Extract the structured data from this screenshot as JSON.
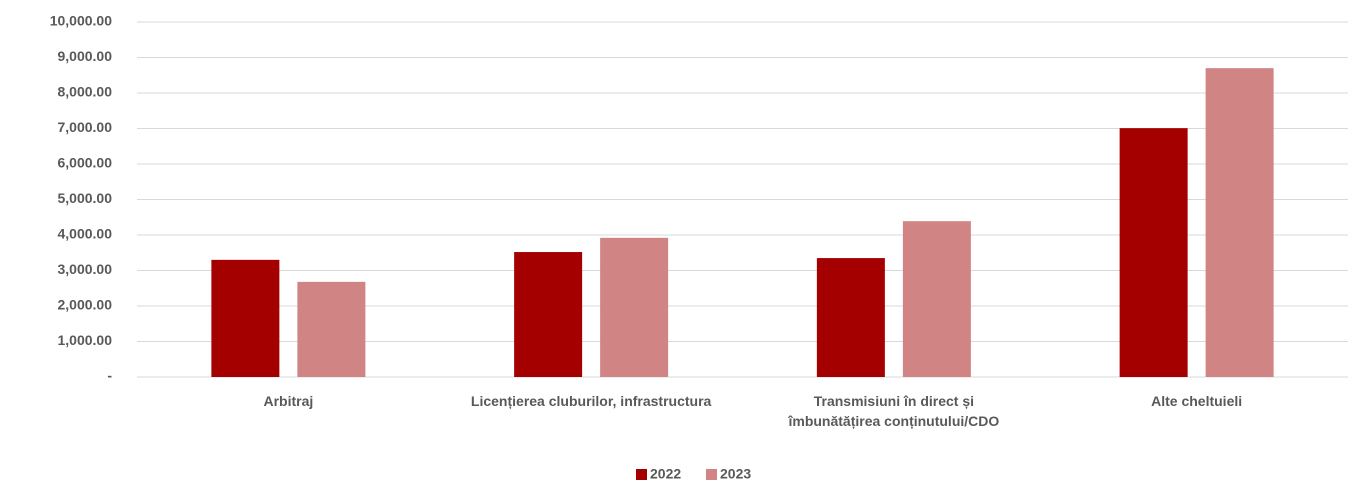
{
  "chart_data": {
    "type": "bar",
    "categories": [
      "Arbitraj",
      "Licențierea cluburilor, infrastructura",
      "Transmisiuni în direct și îmbunătățirea conținutului/CDO",
      "Alte cheltuieli"
    ],
    "series": [
      {
        "name": "2022",
        "color": "#a50000",
        "values": [
          3300,
          3520,
          3350,
          7010
        ]
      },
      {
        "name": "2023",
        "color": "#d08584",
        "values": [
          2680,
          3920,
          4390,
          8700
        ]
      }
    ],
    "ylim": [
      0,
      10000
    ],
    "yticks": [
      {
        "value": 0,
        "label": "-"
      },
      {
        "value": 1000,
        "label": "1,000.00"
      },
      {
        "value": 2000,
        "label": "2,000.00"
      },
      {
        "value": 3000,
        "label": "3,000.00"
      },
      {
        "value": 4000,
        "label": "4,000.00"
      },
      {
        "value": 5000,
        "label": "5,000.00"
      },
      {
        "value": 6000,
        "label": "6,000.00"
      },
      {
        "value": 7000,
        "label": "7,000.00"
      },
      {
        "value": 8000,
        "label": "8,000.00"
      },
      {
        "value": 9000,
        "label": "9,000.00"
      },
      {
        "value": 10000,
        "label": "10,000.00"
      }
    ],
    "grid": true,
    "legend": "bottom"
  }
}
